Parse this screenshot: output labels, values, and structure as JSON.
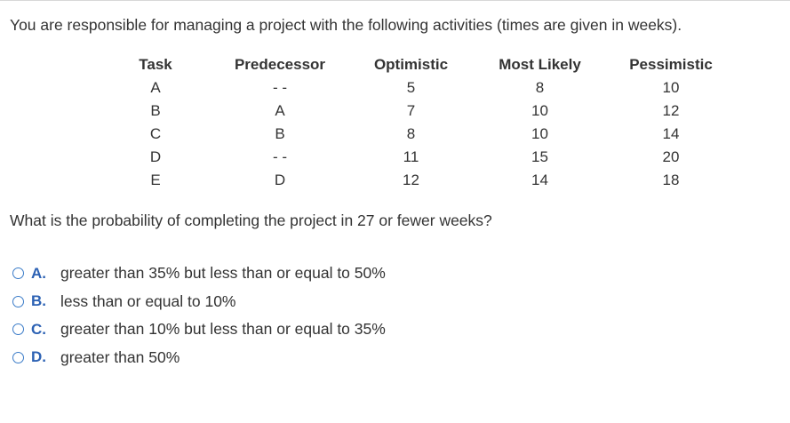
{
  "question": {
    "intro": "You are responsible for managing a project with the following activities (times are given in weeks).",
    "prompt": "What is the probability of completing the project in 27 or fewer weeks?"
  },
  "table": {
    "headers": [
      "Task",
      "Predecessor",
      "Optimistic",
      "Most Likely",
      "Pessimistic"
    ],
    "rows": [
      [
        "A",
        "- -",
        "5",
        "8",
        "10"
      ],
      [
        "B",
        "A",
        "7",
        "10",
        "12"
      ],
      [
        "C",
        "B",
        "8",
        "10",
        "14"
      ],
      [
        "D",
        "- -",
        "11",
        "15",
        "20"
      ],
      [
        "E",
        "D",
        "12",
        "14",
        "18"
      ]
    ]
  },
  "options": [
    {
      "letter": "A.",
      "text": "greater than 35% but less than or equal to 50%"
    },
    {
      "letter": "B.",
      "text": "less than or equal to 10%"
    },
    {
      "letter": "C.",
      "text": "greater than 10% but less than or equal to 35%"
    },
    {
      "letter": "D.",
      "text": "greater than 50%"
    }
  ],
  "colors": {
    "text": "#333333",
    "option_letter": "#2d62b4",
    "radio_border": "#3a7bc8"
  }
}
